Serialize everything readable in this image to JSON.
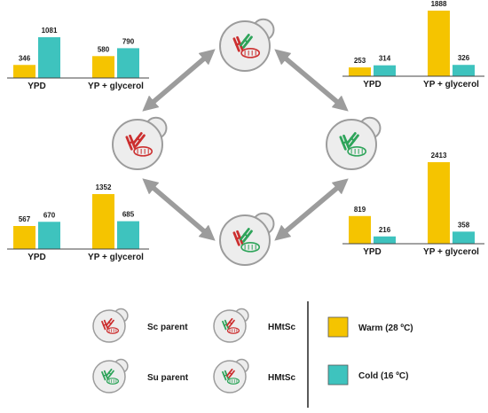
{
  "colors": {
    "warm": "#F5C400",
    "cold": "#3EC3BE",
    "sc_red": "#CC2F2F",
    "su_green": "#2EA45A",
    "arrow": "#9C9C9C",
    "cell_fill": "#EDEDED",
    "cell_stroke": "#9C9C9C"
  },
  "chart_data": [
    {
      "id": "top-left",
      "type": "bar",
      "categories": [
        "YPD",
        "YP + glycerol"
      ],
      "series": [
        {
          "name": "Warm (28 ºC)",
          "values": [
            346,
            580
          ]
        },
        {
          "name": "Cold (16 ºC)",
          "values": [
            1081,
            790
          ]
        }
      ],
      "ylim": [
        0,
        2413
      ],
      "title": "",
      "xlabel": "",
      "ylabel": ""
    },
    {
      "id": "top-right",
      "type": "bar",
      "categories": [
        "YPD",
        "YP + glycerol"
      ],
      "series": [
        {
          "name": "Warm (28 ºC)",
          "values": [
            253,
            1888
          ]
        },
        {
          "name": "Cold (16 ºC)",
          "values": [
            314,
            326
          ]
        }
      ],
      "ylim": [
        0,
        2413
      ],
      "title": "",
      "xlabel": "",
      "ylabel": ""
    },
    {
      "id": "bottom-left",
      "type": "bar",
      "categories": [
        "YPD",
        "YP + glycerol"
      ],
      "series": [
        {
          "name": "Warm (28 ºC)",
          "values": [
            567,
            1352
          ]
        },
        {
          "name": "Cold (16 ºC)",
          "values": [
            670,
            685
          ]
        }
      ],
      "ylim": [
        0,
        2413
      ],
      "title": "",
      "xlabel": "",
      "ylabel": ""
    },
    {
      "id": "bottom-right",
      "type": "bar",
      "categories": [
        "YPD",
        "YP + glycerol"
      ],
      "series": [
        {
          "name": "Warm (28 ºC)",
          "values": [
            819,
            2413
          ]
        },
        {
          "name": "Cold (16 ºC)",
          "values": [
            216,
            358
          ]
        }
      ],
      "ylim": [
        0,
        2413
      ],
      "title": "",
      "xlabel": "",
      "ylabel": ""
    }
  ],
  "cells": [
    {
      "id": "top",
      "chromosomes": [
        "red",
        "green"
      ],
      "mito": "red"
    },
    {
      "id": "left",
      "chromosomes": [
        "red",
        "red"
      ],
      "mito": "red"
    },
    {
      "id": "right",
      "chromosomes": [
        "green",
        "green"
      ],
      "mito": "green"
    },
    {
      "id": "bottom",
      "chromosomes": [
        "red",
        "green"
      ],
      "mito": "green"
    }
  ],
  "legend": {
    "strains": [
      {
        "label": "Sc parent",
        "chromosomes": [
          "red",
          "red"
        ],
        "mito": "red"
      },
      {
        "label": "HMtSc",
        "chromosomes": [
          "green",
          "red"
        ],
        "mito": "red"
      },
      {
        "label": "Su parent",
        "chromosomes": [
          "green",
          "green"
        ],
        "mito": "green"
      },
      {
        "label": "HMtSc",
        "chromosomes": [
          "green",
          "red"
        ],
        "mito": "green"
      }
    ],
    "conditions": [
      {
        "label": "Warm (28 ºC)",
        "color_key": "warm"
      },
      {
        "label": "Cold (16 ºC)",
        "color_key": "cold"
      }
    ]
  }
}
